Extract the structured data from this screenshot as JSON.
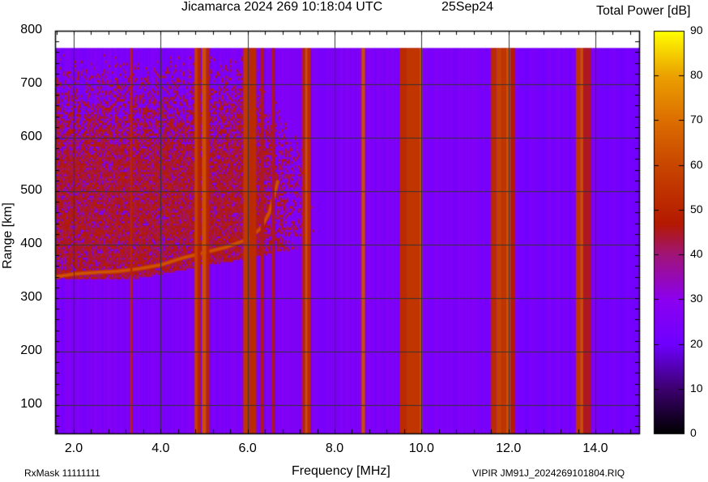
{
  "header": {
    "title": "Jicamarca 2024 269 10:18:04 UTC",
    "date": "25Sep24",
    "colorbar_title": "Total Power [dB]"
  },
  "footer": {
    "rxmask": "RxMask 11111111",
    "file": "VIPIR  JM91J_2024269101804.RIQ"
  },
  "colors": {
    "background_purple": "#8000ff",
    "band_red": "#c03000",
    "band_orange": "#e06000",
    "grid": "#333333"
  },
  "chart_data": {
    "type": "heatmap",
    "title": "Jicamarca 2024 269 10:18:04 UTC",
    "subtitle": "25Sep24",
    "xlabel": "Frequency [MHz]",
    "ylabel": "Range [km]",
    "colorbar_label": "Total Power [dB]",
    "xlim": [
      1.57,
      15.0
    ],
    "ylim": [
      47,
      800
    ],
    "data_ylim": [
      47,
      768
    ],
    "xticks": [
      "2.0",
      "4.0",
      "6.0",
      "8.0",
      "10.0",
      "12.0",
      "14.0"
    ],
    "xtick_values": [
      2,
      4,
      6,
      8,
      10,
      12,
      14
    ],
    "yticks": [
      "100",
      "200",
      "300",
      "400",
      "500",
      "600",
      "700",
      "800"
    ],
    "ytick_values": [
      100,
      200,
      300,
      400,
      500,
      600,
      700,
      800
    ],
    "colorbar_ticks": [
      "0",
      "10",
      "20",
      "30",
      "40",
      "50",
      "60",
      "70",
      "80",
      "90"
    ],
    "colorbar_range": [
      0,
      90
    ],
    "grid": true,
    "background_level_db": 25,
    "interference_bands_mhz": [
      {
        "f0": 3.3,
        "f1": 3.35,
        "db": 50
      },
      {
        "f0": 4.78,
        "f1": 4.85,
        "db": 58
      },
      {
        "f0": 4.85,
        "f1": 4.92,
        "db": 50
      },
      {
        "f0": 4.95,
        "f1": 5.05,
        "db": 62
      },
      {
        "f0": 5.05,
        "f1": 5.12,
        "db": 50
      },
      {
        "f0": 5.9,
        "f1": 6.05,
        "db": 55
      },
      {
        "f0": 6.05,
        "f1": 6.2,
        "db": 52
      },
      {
        "f0": 6.3,
        "f1": 6.38,
        "db": 45
      },
      {
        "f0": 6.55,
        "f1": 6.62,
        "db": 45
      },
      {
        "f0": 7.25,
        "f1": 7.32,
        "db": 50
      },
      {
        "f0": 7.32,
        "f1": 7.38,
        "db": 62
      },
      {
        "f0": 7.38,
        "f1": 7.45,
        "db": 52
      },
      {
        "f0": 8.62,
        "f1": 8.7,
        "db": 62
      },
      {
        "f0": 9.5,
        "f1": 9.65,
        "db": 52
      },
      {
        "f0": 9.65,
        "f1": 9.95,
        "db": 55
      },
      {
        "f0": 9.95,
        "f1": 10.02,
        "db": 62
      },
      {
        "f0": 11.6,
        "f1": 11.72,
        "db": 52
      },
      {
        "f0": 11.72,
        "f1": 11.85,
        "db": 58
      },
      {
        "f0": 11.85,
        "f1": 11.95,
        "db": 55
      },
      {
        "f0": 11.95,
        "f1": 12.05,
        "db": 62
      },
      {
        "f0": 12.05,
        "f1": 12.15,
        "db": 48
      },
      {
        "f0": 13.55,
        "f1": 13.65,
        "db": 55
      },
      {
        "f0": 13.65,
        "f1": 13.72,
        "db": 62
      },
      {
        "f0": 13.72,
        "f1": 13.9,
        "db": 45
      }
    ],
    "f_layer_trace": {
      "description": "O-mode F-layer echo, virtual height increasing with frequency",
      "points_mhz_km": [
        [
          1.6,
          340
        ],
        [
          2.0,
          345
        ],
        [
          2.5,
          348
        ],
        [
          3.0,
          350
        ],
        [
          3.5,
          355
        ],
        [
          4.0,
          362
        ],
        [
          4.5,
          375
        ],
        [
          5.0,
          385
        ],
        [
          5.5,
          395
        ],
        [
          6.0,
          410
        ],
        [
          6.3,
          430
        ],
        [
          6.5,
          460
        ],
        [
          6.7,
          520
        ]
      ],
      "db": 58
    },
    "spread_echo_region": {
      "f0": 1.57,
      "f1": 7.5,
      "h_min_km": 340,
      "h_max_km": 560,
      "db": 46
    }
  }
}
